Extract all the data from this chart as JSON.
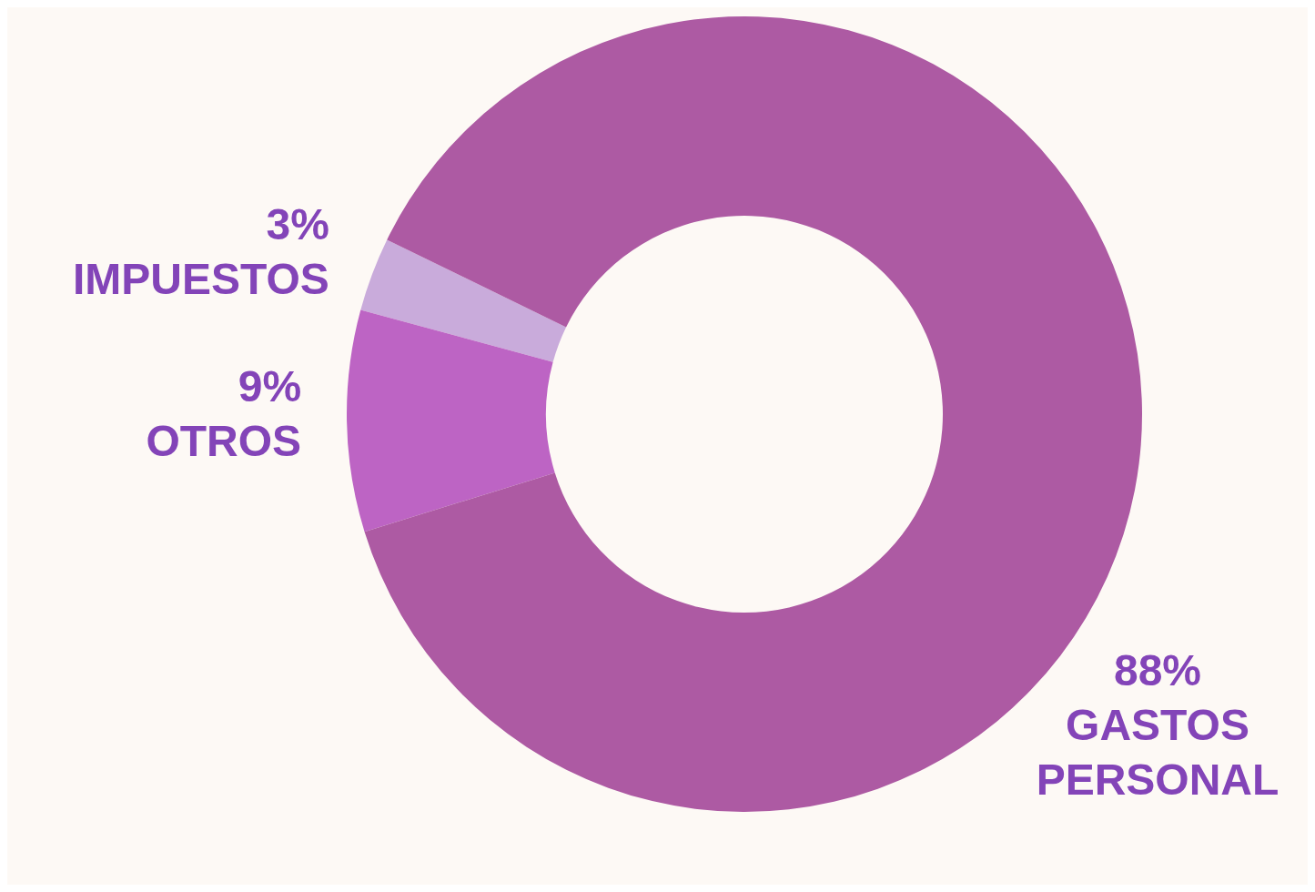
{
  "chart_data": {
    "type": "donut",
    "categories": [
      "IMPUESTOS",
      "OTROS",
      "GASTOS PERSONAL"
    ],
    "values": [
      3,
      9,
      88
    ],
    "colors": [
      "#c9abdb",
      "#bd64c4",
      "#ad5aa3"
    ],
    "value_labels": [
      "3%",
      "9%",
      "88%"
    ]
  }
}
